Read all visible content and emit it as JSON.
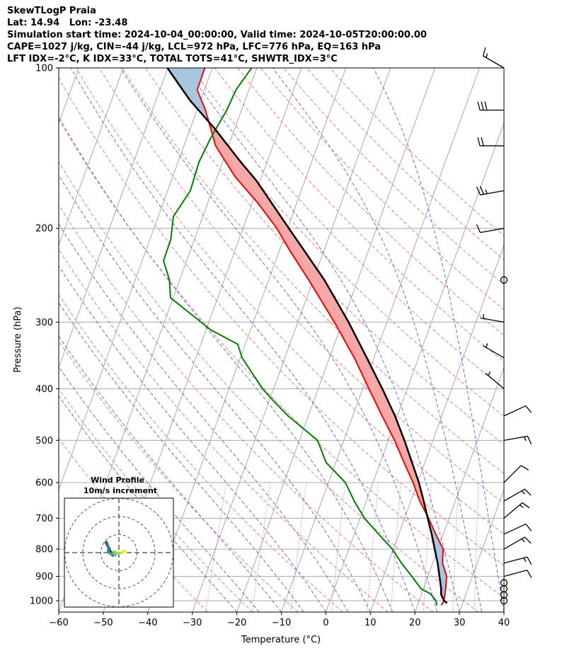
{
  "header": {
    "line1": "SkewTLogP Praia",
    "line2": "Lat: 14.94   Lon: -23.48",
    "line3": "Simulation start time: 2024-10-04_00:00:00, Valid time: 2024-10-05T20:00:00.00",
    "line4": "CAPE=1027 j/kg, CIN=-44 j/kg, LCL=972 hPa, LFC=776 hPa, EQ=163 hPa",
    "line5": "LFT IDX=-2°C, K IDX=33°C, TOTAL TOTS=41°C, SHWTR_IDX=3°C"
  },
  "chart_data": {
    "type": "line",
    "subtype": "skew-t log-p",
    "xlabel": "Temperature (°C)",
    "ylabel": "Pressure (hPa)",
    "xlim": [
      -60,
      40
    ],
    "ylim_hpa": [
      1050,
      100
    ],
    "x_ticks": [
      -60,
      -50,
      -40,
      -30,
      -20,
      -10,
      0,
      10,
      20,
      30,
      40
    ],
    "x_tick_labels": [
      "−60",
      "−50",
      "−40",
      "−30",
      "−20",
      "−10",
      "0",
      "10",
      "20",
      "30",
      "40"
    ],
    "y_ticks": [
      1000,
      900,
      800,
      700,
      600,
      500,
      400,
      300,
      200,
      100
    ],
    "y_tick_labels": [
      "1000",
      "900",
      "800",
      "700",
      "600",
      "500",
      "400",
      "300",
      "200",
      "100"
    ],
    "grid": true,
    "colors": {
      "temperature": "#ff0000",
      "dewpoint": "#008000",
      "parcel": "#000000",
      "cape": "#f4a3a3",
      "cin": "#a2c4df",
      "dry_adiabat": "#ff6666",
      "moist_adiabat": "#5a5aff",
      "mixing_ratio": "#a050c8",
      "isotherm": "#a8a8a8"
    },
    "temperature_profile": [
      [
        1020,
        25.4
      ],
      [
        1000,
        25.6
      ],
      [
        950,
        25.0
      ],
      [
        900,
        24.2
      ],
      [
        850,
        22.2
      ],
      [
        800,
        21.2
      ],
      [
        750,
        18.3
      ],
      [
        700,
        15.4
      ],
      [
        650,
        12.0
      ],
      [
        600,
        9.0
      ],
      [
        550,
        5.3
      ],
      [
        500,
        1.4
      ],
      [
        450,
        -3.4
      ],
      [
        400,
        -8.6
      ],
      [
        350,
        -14.4
      ],
      [
        300,
        -21.8
      ],
      [
        250,
        -31.0
      ],
      [
        220,
        -37.7
      ],
      [
        200,
        -42.4
      ],
      [
        180,
        -48.5
      ],
      [
        160,
        -56.0
      ],
      [
        140,
        -62.9
      ],
      [
        120,
        -68.1
      ],
      [
        110,
        -71.6
      ],
      [
        100,
        -71.7
      ]
    ],
    "dewpoint_profile": [
      [
        1020,
        24.4
      ],
      [
        1000,
        23.8
      ],
      [
        970,
        22.0
      ],
      [
        950,
        19.5
      ],
      [
        900,
        16.4
      ],
      [
        850,
        13.0
      ],
      [
        800,
        9.8
      ],
      [
        750,
        5.5
      ],
      [
        700,
        1.0
      ],
      [
        650,
        -2.7
      ],
      [
        600,
        -6.2
      ],
      [
        550,
        -12.2
      ],
      [
        500,
        -15.9
      ],
      [
        450,
        -24.5
      ],
      [
        420,
        -29.3
      ],
      [
        400,
        -32.5
      ],
      [
        350,
        -39.6
      ],
      [
        330,
        -41.7
      ],
      [
        310,
        -49.0
      ],
      [
        270,
        -60.6
      ],
      [
        250,
        -62.3
      ],
      [
        230,
        -65.2
      ],
      [
        210,
        -65.3
      ],
      [
        190,
        -66.6
      ],
      [
        170,
        -64.9
      ],
      [
        150,
        -65.3
      ],
      [
        135,
        -64.6
      ],
      [
        120,
        -63.3
      ],
      [
        110,
        -62.9
      ],
      [
        100,
        -61.2
      ]
    ],
    "parcel_profile": [
      [
        1010,
        26.5
      ],
      [
        1000,
        25.6
      ],
      [
        972,
        24.4
      ],
      [
        950,
        24.0
      ],
      [
        900,
        22.6
      ],
      [
        850,
        21.1
      ],
      [
        800,
        19.3
      ],
      [
        750,
        17.4
      ],
      [
        700,
        15.2
      ],
      [
        650,
        12.9
      ],
      [
        600,
        10.3
      ],
      [
        550,
        7.1
      ],
      [
        500,
        3.6
      ],
      [
        450,
        -0.5
      ],
      [
        400,
        -5.6
      ],
      [
        350,
        -11.6
      ],
      [
        300,
        -18.6
      ],
      [
        250,
        -27.5
      ],
      [
        200,
        -39.7
      ],
      [
        163,
        -50.8
      ],
      [
        150,
        -56.0
      ],
      [
        130,
        -64.5
      ],
      [
        115,
        -72.4
      ],
      [
        100,
        -80.1
      ]
    ],
    "wind_barbs": [
      [
        1000,
        0,
        0
      ],
      [
        975,
        0,
        0
      ],
      [
        950,
        0,
        0
      ],
      [
        925,
        0,
        0
      ],
      [
        900,
        12,
        75
      ],
      [
        850,
        16,
        75
      ],
      [
        800,
        16,
        60
      ],
      [
        750,
        10,
        65
      ],
      [
        700,
        16,
        50
      ],
      [
        650,
        16,
        60
      ],
      [
        600,
        12,
        45
      ],
      [
        500,
        16,
        80
      ],
      [
        450,
        12,
        65
      ],
      [
        400,
        6,
        310
      ],
      [
        350,
        6,
        300
      ],
      [
        300,
        6,
        280
      ],
      [
        250,
        0,
        0
      ],
      [
        200,
        8,
        260
      ],
      [
        170,
        24,
        260
      ],
      [
        140,
        22,
        270
      ],
      [
        120,
        28,
        270
      ],
      [
        100,
        16,
        300
      ]
    ],
    "hodograph": {
      "title": "Wind Profile",
      "subtitle": "10m/s increment",
      "ring_step_ms": 10,
      "ring_count": 3,
      "points": [
        [
          -3.5,
          -1.5
        ],
        [
          -4.0,
          -0.8
        ],
        [
          -4.5,
          0.2
        ],
        [
          -5.0,
          1.2
        ],
        [
          -5.2,
          1.8
        ],
        [
          -5.5,
          2.5
        ],
        [
          -6.0,
          3.2
        ],
        [
          -6.5,
          4.2
        ],
        [
          -7.0,
          5.0
        ],
        [
          -7.3,
          5.6
        ],
        [
          -6.8,
          5.8
        ],
        [
          -6.5,
          5.0
        ],
        [
          -6.0,
          3.4
        ],
        [
          -5.3,
          2.4
        ],
        [
          -5.8,
          2.0
        ],
        [
          -6.0,
          0.8
        ],
        [
          -5.5,
          -0.2
        ],
        [
          -4.5,
          -0.6
        ],
        [
          -3.5,
          -0.9
        ],
        [
          -2.6,
          -1.0
        ],
        [
          -2.0,
          -1.4
        ],
        [
          -2.5,
          -1.0
        ],
        [
          -3.0,
          0.5
        ],
        [
          -2.4,
          0.4
        ],
        [
          -1.0,
          -0.3
        ],
        [
          0.5,
          -0.3
        ],
        [
          1.8,
          0.0
        ],
        [
          2.8,
          0.5
        ],
        [
          3.4,
          0.8
        ],
        [
          2.0,
          0.3
        ]
      ]
    }
  }
}
